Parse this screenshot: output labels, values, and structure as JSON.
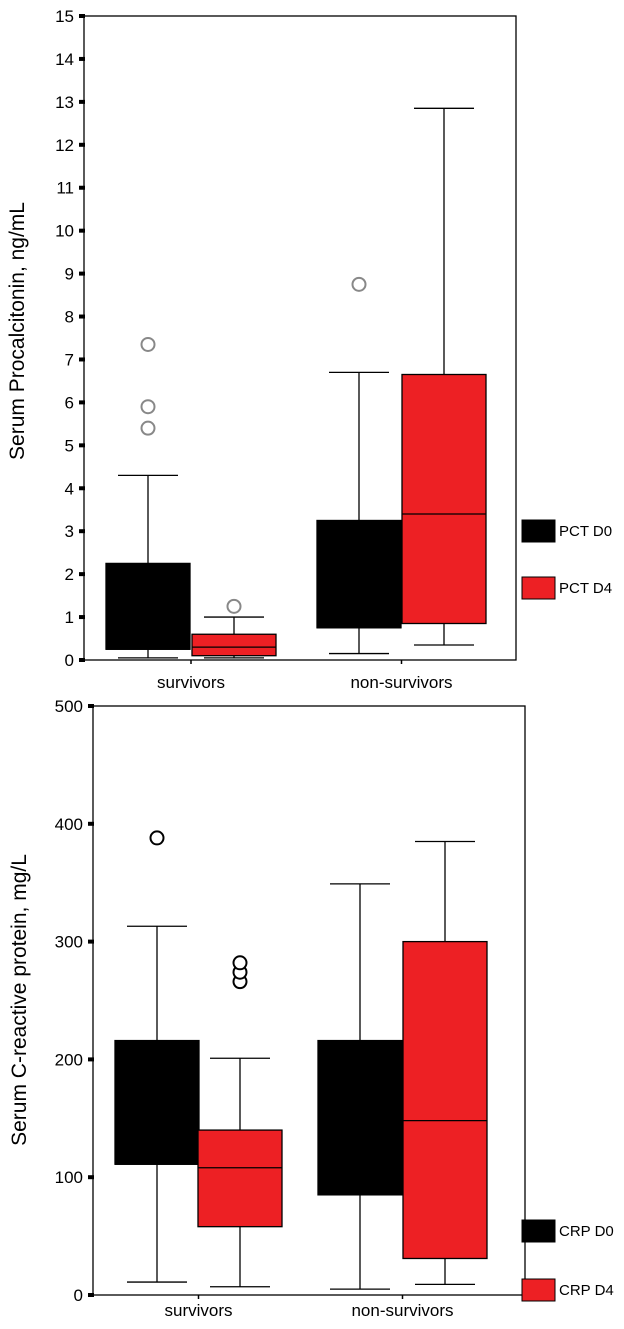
{
  "chart_data": [
    {
      "type": "box",
      "ylabel": "Serum Procalcitonin,  ng/mL",
      "ylim": [
        0,
        15
      ],
      "yticks": [
        0,
        1,
        2,
        3,
        4,
        5,
        6,
        7,
        8,
        9,
        10,
        11,
        12,
        13,
        14,
        15
      ],
      "categories": [
        "survivors",
        "non-survivors"
      ],
      "grid": false,
      "legend_position": "right-bottom",
      "series": [
        {
          "name": "PCT D0",
          "color": "#000000",
          "boxes": [
            {
              "min": 0.05,
              "q1": 0.25,
              "median": 0.25,
              "q3": 2.25,
              "max": 4.3,
              "outliers": [
                5.4,
                5.9,
                7.35
              ]
            },
            {
              "min": 0.15,
              "q1": 0.75,
              "median": 0.75,
              "q3": 3.25,
              "max": 6.7,
              "outliers": [
                8.75
              ]
            }
          ]
        },
        {
          "name": "PCT D4",
          "color": "#ED2024",
          "boxes": [
            {
              "min": 0.05,
              "q1": 0.1,
              "median": 0.3,
              "q3": 0.6,
              "max": 1.0,
              "outliers": [
                1.25
              ]
            },
            {
              "min": 0.35,
              "q1": 0.85,
              "median": 3.4,
              "q3": 6.65,
              "max": 12.85,
              "outliers": []
            }
          ]
        }
      ]
    },
    {
      "type": "box",
      "ylabel": "Serum C-reactive protein, mg/L",
      "ylim": [
        0,
        500
      ],
      "yticks": [
        0,
        100,
        200,
        300,
        400,
        500
      ],
      "categories": [
        "survivors",
        "non-survivors"
      ],
      "grid": false,
      "legend_position": "right-bottom",
      "series": [
        {
          "name": "CRP D0",
          "color": "#000000",
          "boxes": [
            {
              "min": 11,
              "q1": 111,
              "median": 111,
              "q3": 216,
              "max": 313,
              "outliers": [
                388
              ]
            },
            {
              "min": 5,
              "q1": 85,
              "median": 85,
              "q3": 216,
              "max": 349,
              "outliers": []
            }
          ]
        },
        {
          "name": "CRP D4",
          "color": "#ED2024",
          "boxes": [
            {
              "min": 7,
              "q1": 58,
              "median": 108,
              "q3": 140,
              "max": 201,
              "outliers": [
                266,
                274,
                282
              ]
            },
            {
              "min": 9,
              "q1": 31,
              "median": 148,
              "q3": 300,
              "max": 385,
              "outliers": []
            }
          ]
        }
      ]
    }
  ]
}
